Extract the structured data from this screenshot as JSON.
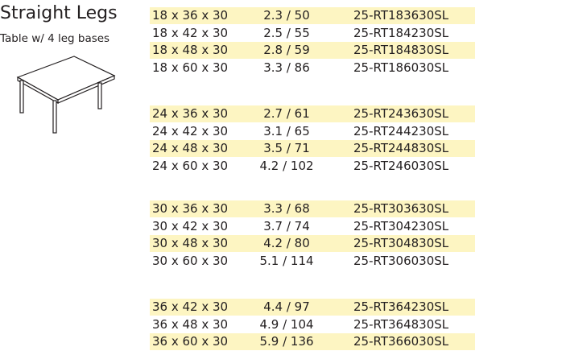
{
  "header": {
    "title": "Straight Legs",
    "subtitle": "Table w/ 4 leg bases"
  },
  "table": {
    "groups": [
      [
        [
          "18 x 36 x 30",
          "2.3 / 50",
          "25-RT183630SL"
        ],
        [
          "18 x 42 x 30",
          "2.5 / 55",
          "25-RT184230SL"
        ],
        [
          "18 x 48 x 30",
          "2.8 / 59",
          "25-RT184830SL"
        ],
        [
          "18 x 60 x 30",
          "3.3 / 86",
          "25-RT186030SL"
        ]
      ],
      [
        [
          "24 x 36 x 30",
          "2.7 / 61",
          "25-RT243630SL"
        ],
        [
          "24 x 42 x 30",
          "3.1 / 65",
          "25-RT244230SL"
        ],
        [
          "24 x 48 x 30",
          "3.5 / 71",
          "25-RT244830SL"
        ],
        [
          "24 x 60 x 30",
          "4.2 / 102",
          "25-RT246030SL"
        ]
      ],
      [
        [
          "30 x 36 x 30",
          "3.3 / 68",
          "25-RT303630SL"
        ],
        [
          "30 x 42 x 30",
          "3.7 / 74",
          "25-RT304230SL"
        ],
        [
          "30 x 48 x 30",
          "4.2 / 80",
          "25-RT304830SL"
        ],
        [
          "30 x 60 x 30",
          "5.1 / 114",
          "25-RT306030SL"
        ]
      ],
      [
        [
          "36 x 42 x 30",
          "4.4 / 97",
          "25-RT364230SL"
        ],
        [
          "36 x 48 x 30",
          "4.9 / 104",
          "25-RT364830SL"
        ],
        [
          "36 x 60 x 30",
          "5.9 / 136",
          "25-RT366030SL"
        ]
      ]
    ]
  }
}
